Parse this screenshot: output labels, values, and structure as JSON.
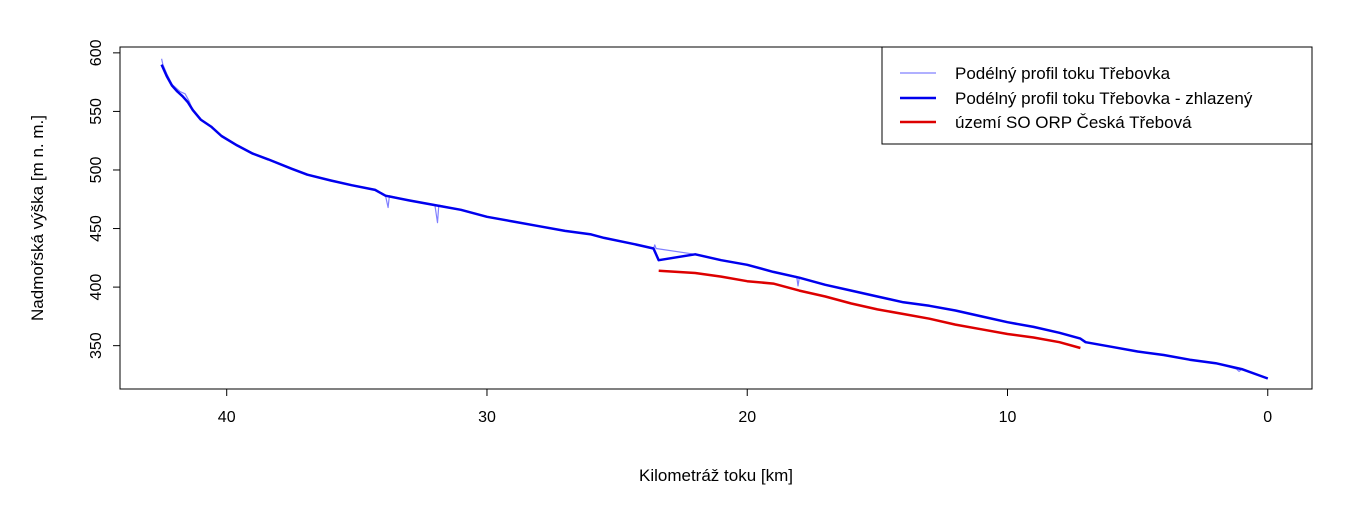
{
  "chart_data": {
    "type": "line",
    "xlabel": "Kilometráž toku [km]",
    "ylabel": "Nadmořská výška [m n. m.]",
    "xlim": [
      44.1,
      -1.7
    ],
    "ylim": [
      313,
      605
    ],
    "x_reversed": true,
    "x_ticks": [
      40,
      30,
      20,
      10,
      0
    ],
    "y_ticks": [
      350,
      400,
      450,
      500,
      550,
      600
    ],
    "grid": false,
    "legend_position": "top-right",
    "series": [
      {
        "name": "Podélný profil toku Třebovka",
        "color": "#8080ff",
        "points": [
          [
            42.5,
            595
          ],
          [
            42.45,
            590
          ],
          [
            42.3,
            582
          ],
          [
            42.1,
            573
          ],
          [
            41.8,
            567
          ],
          [
            41.6,
            565
          ],
          [
            41.45,
            559
          ],
          [
            41.3,
            551
          ],
          [
            41.0,
            543
          ],
          [
            40.6,
            537
          ],
          [
            40.2,
            529
          ],
          [
            39.6,
            521
          ],
          [
            39.0,
            514
          ],
          [
            38.4,
            509
          ],
          [
            37.5,
            501
          ],
          [
            36.9,
            496
          ],
          [
            36.0,
            491
          ],
          [
            35.2,
            487
          ],
          [
            34.3,
            483
          ],
          [
            33.9,
            478
          ],
          [
            33.8,
            468
          ],
          [
            33.75,
            478
          ],
          [
            33.0,
            474
          ],
          [
            32.0,
            470
          ],
          [
            31.9,
            455
          ],
          [
            31.85,
            470
          ],
          [
            31.0,
            466
          ],
          [
            30.0,
            460
          ],
          [
            29.0,
            456
          ],
          [
            28.0,
            452
          ],
          [
            27.0,
            448
          ],
          [
            26.0,
            445
          ],
          [
            25.5,
            442
          ],
          [
            24.4,
            437
          ],
          [
            24.0,
            435
          ],
          [
            23.6,
            433
          ],
          [
            23.55,
            436
          ],
          [
            23.5,
            433
          ],
          [
            22.0,
            428
          ],
          [
            21.0,
            423
          ],
          [
            20.0,
            419
          ],
          [
            19.0,
            413
          ],
          [
            18.1,
            409
          ],
          [
            18.05,
            401
          ],
          [
            18.0,
            408
          ],
          [
            17.0,
            402
          ],
          [
            16.0,
            397
          ],
          [
            15.0,
            392
          ],
          [
            14.0,
            387
          ],
          [
            13.0,
            384
          ],
          [
            12.0,
            380
          ],
          [
            11.0,
            375
          ],
          [
            10.0,
            370
          ],
          [
            9.0,
            366
          ],
          [
            8.0,
            361
          ],
          [
            7.2,
            356
          ],
          [
            7.0,
            353
          ],
          [
            6.0,
            349
          ],
          [
            5.0,
            345
          ],
          [
            4.0,
            342
          ],
          [
            3.0,
            338
          ],
          [
            2.0,
            335
          ],
          [
            1.2,
            330
          ],
          [
            1.1,
            328
          ],
          [
            1.0,
            330
          ],
          [
            0.0,
            322
          ]
        ]
      },
      {
        "name": "Podélný profil toku Třebovka - zhlazený",
        "color": "#0000ee",
        "points": [
          [
            42.5,
            590
          ],
          [
            42.3,
            580
          ],
          [
            42.1,
            572
          ],
          [
            41.9,
            567
          ],
          [
            41.7,
            563
          ],
          [
            41.5,
            558
          ],
          [
            41.3,
            551
          ],
          [
            41.0,
            543
          ],
          [
            40.6,
            537
          ],
          [
            40.2,
            529
          ],
          [
            39.6,
            521
          ],
          [
            39.0,
            514
          ],
          [
            38.4,
            509
          ],
          [
            37.5,
            501
          ],
          [
            36.9,
            496
          ],
          [
            36.0,
            491
          ],
          [
            35.2,
            487
          ],
          [
            34.3,
            483
          ],
          [
            33.9,
            478
          ],
          [
            33.0,
            474
          ],
          [
            32.0,
            470
          ],
          [
            31.0,
            466
          ],
          [
            30.0,
            460
          ],
          [
            29.0,
            456
          ],
          [
            28.0,
            452
          ],
          [
            27.0,
            448
          ],
          [
            26.0,
            445
          ],
          [
            25.5,
            442
          ],
          [
            24.4,
            437
          ],
          [
            24.0,
            435
          ],
          [
            23.6,
            433
          ],
          [
            23.4,
            423
          ],
          [
            22.0,
            428
          ],
          [
            21.0,
            423
          ],
          [
            20.0,
            419
          ],
          [
            19.0,
            413
          ],
          [
            18.0,
            408
          ],
          [
            17.0,
            402
          ],
          [
            16.0,
            397
          ],
          [
            15.0,
            392
          ],
          [
            14.0,
            387
          ],
          [
            13.0,
            384
          ],
          [
            12.0,
            380
          ],
          [
            11.0,
            375
          ],
          [
            10.0,
            370
          ],
          [
            9.0,
            366
          ],
          [
            8.0,
            361
          ],
          [
            7.2,
            356
          ],
          [
            7.0,
            353
          ],
          [
            6.0,
            349
          ],
          [
            5.0,
            345
          ],
          [
            4.0,
            342
          ],
          [
            3.0,
            338
          ],
          [
            2.0,
            335
          ],
          [
            1.0,
            330
          ],
          [
            0.0,
            322
          ]
        ]
      },
      {
        "name": "území SO ORP Česká Třebová",
        "color": "#dd0000",
        "points": [
          [
            23.4,
            414
          ],
          [
            22.0,
            412
          ],
          [
            21.0,
            409
          ],
          [
            20.0,
            405
          ],
          [
            19.0,
            403
          ],
          [
            18.0,
            397
          ],
          [
            17.0,
            392
          ],
          [
            16.0,
            386
          ],
          [
            15.0,
            381
          ],
          [
            14.0,
            377
          ],
          [
            13.0,
            373
          ],
          [
            12.0,
            368
          ],
          [
            11.0,
            364
          ],
          [
            10.0,
            360
          ],
          [
            9.0,
            357
          ],
          [
            8.0,
            353
          ],
          [
            7.2,
            348
          ]
        ]
      }
    ]
  }
}
